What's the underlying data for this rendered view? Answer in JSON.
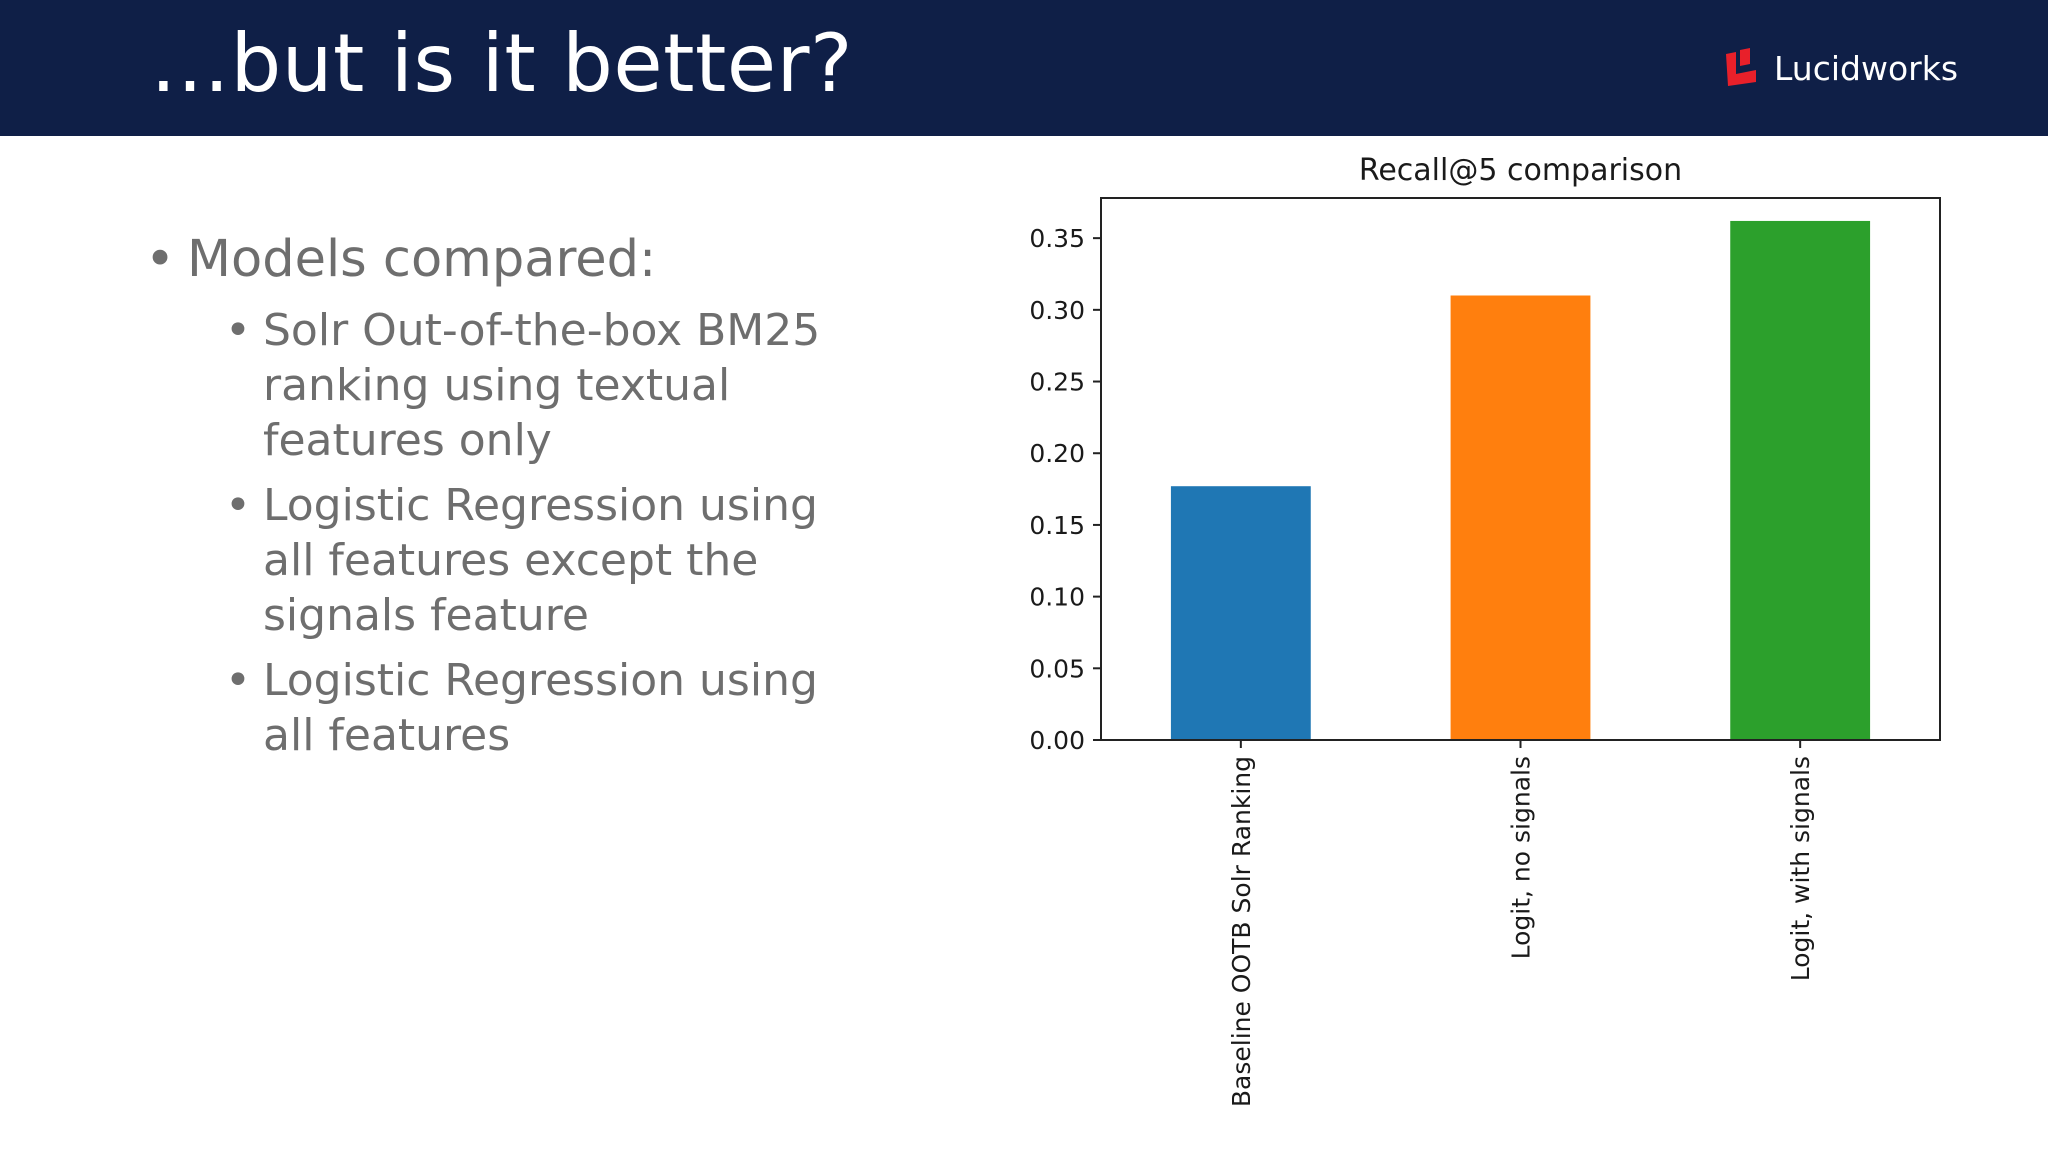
{
  "slide": {
    "title": "…but is it better?",
    "brand": "Lucidworks",
    "brand_color": "#e8202a",
    "header_bg": "#0f1f47"
  },
  "content": {
    "heading": "Models compared:",
    "bullet_glyph": "•",
    "items": [
      "Solr Out-of-the-box BM25 ranking using textual features only",
      "Logistic Regression using all features except the signals feature",
      "Logistic Regression using all features"
    ]
  },
  "chart_data": {
    "type": "bar",
    "title": "Recall@5 comparison",
    "xlabel": "",
    "ylabel": "",
    "categories": [
      "Baseline OOTB Solr Ranking",
      "Logit, no signals",
      "Logit, with signals"
    ],
    "values": [
      0.177,
      0.31,
      0.362
    ],
    "colors": [
      "#1f77b4",
      "#ff7f0e",
      "#2ca02c"
    ],
    "ylim": [
      0,
      0.378
    ],
    "yticks": [
      "0.00",
      "0.05",
      "0.10",
      "0.15",
      "0.20",
      "0.25",
      "0.30",
      "0.35"
    ],
    "grid": false,
    "legend": "none"
  }
}
